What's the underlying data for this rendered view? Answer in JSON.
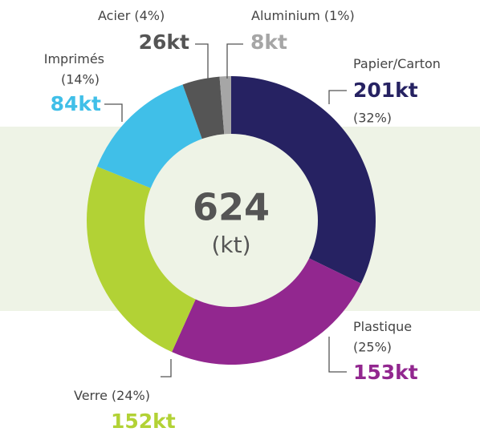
{
  "chart_data": {
    "type": "donut",
    "categories": [
      "Papier/Carton",
      "Plastique",
      "Verre",
      "Imprimés",
      "Acier",
      "Aluminium"
    ],
    "values": [
      201,
      153,
      152,
      84,
      26,
      8
    ],
    "value_labels": [
      "201kt",
      "153kt",
      "152kt",
      "84kt",
      "26kt",
      "8kt"
    ],
    "percents": [
      32,
      25,
      24,
      14,
      4,
      1
    ],
    "percent_labels": [
      "(32%)",
      "(25%)",
      "(24%)",
      "(14%)",
      "(4%)",
      "(1%)"
    ],
    "colors": [
      "#262262",
      "#92278f",
      "#b2d235",
      "#40bfe8",
      "#555555",
      "#a6a6a6"
    ],
    "total": 624,
    "unit": "(kt)"
  }
}
